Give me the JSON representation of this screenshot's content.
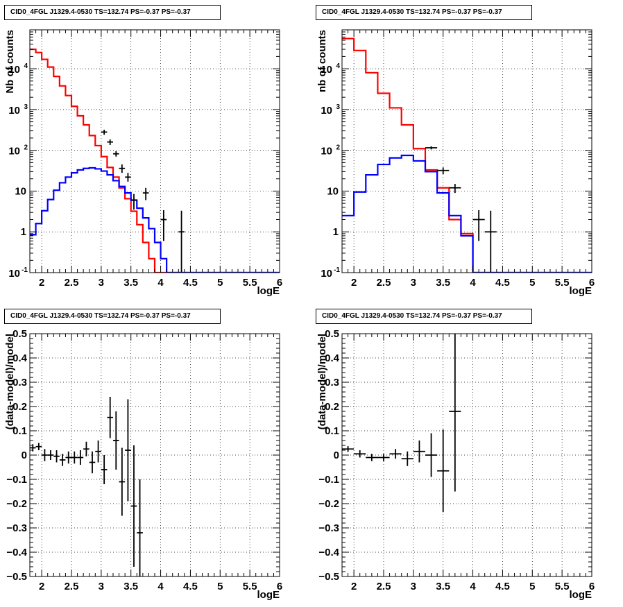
{
  "chart_data": [
    {
      "type": "step-histogram",
      "title": "CID0_4FGL J1329.4-0530 TS=132.74 PS=-0.37 PS=-0.37",
      "xlabel": "logE",
      "ylabel": "Nb of counts",
      "xlim": [
        1.8,
        6.0
      ],
      "ylim": [
        0.1,
        90000
      ],
      "yscale": "log",
      "grid": true,
      "x_ticks": [
        "2",
        "2.5",
        "3",
        "3.5",
        "4",
        "4.5",
        "5",
        "5.5",
        "6"
      ],
      "y_ticks": [
        "10^-1",
        "1",
        "10",
        "10^2",
        "10^3",
        "10^4"
      ],
      "bin_edges": [
        1.8,
        1.9,
        2.0,
        2.1,
        2.2,
        2.3,
        2.4,
        2.5,
        2.6,
        2.7,
        2.8,
        2.9,
        3.0,
        3.1,
        3.2,
        3.3,
        3.4,
        3.5,
        3.6,
        3.7,
        3.8,
        3.9,
        4.0,
        4.1,
        4.2,
        4.3,
        4.4,
        4.5,
        4.6,
        4.7,
        4.8,
        4.9,
        5.0,
        5.1,
        5.2,
        5.3,
        5.4,
        5.5,
        5.6,
        5.7,
        5.8,
        5.9,
        6.0
      ],
      "series": [
        {
          "name": "",
          "color": "#ff0000",
          "style": "step",
          "values": [
            30000,
            25000,
            17000,
            11000,
            6500,
            3800,
            2200,
            1200,
            700,
            420,
            230,
            130,
            70,
            38,
            22,
            12,
            6.5,
            3.2,
            1.5,
            0.55,
            0.22,
            0.1,
            0.1,
            0.1,
            0.1,
            0.1,
            0.1,
            0.1,
            0.1,
            0.1,
            0.1,
            0.1,
            0.1,
            0.1,
            0.1,
            0.1,
            0.1,
            0.1,
            0.1,
            0.1,
            0.1,
            0.1
          ]
        },
        {
          "name": "",
          "color": "#0000ff",
          "style": "step",
          "values": [
            0.85,
            1.6,
            3.3,
            6.2,
            10.5,
            16,
            22,
            28,
            33,
            36,
            37,
            35,
            31,
            25,
            18,
            13,
            9,
            6,
            3.8,
            2.2,
            1.2,
            0.55,
            0.22,
            0.1,
            0.1,
            0.1,
            0.1,
            0.1,
            0.1,
            0.1,
            0.1,
            0.1,
            0.1,
            0.1,
            0.1,
            0.1,
            0.1,
            0.1,
            0.1,
            0.1,
            0.1,
            0.1
          ]
        },
        {
          "name": "",
          "color": "#000000",
          "style": "errorbar",
          "points": [
            {
              "x": 3.05,
              "y": 280,
              "lo": 240,
              "hi": 320
            },
            {
              "x": 3.15,
              "y": 160,
              "lo": 135,
              "hi": 185
            },
            {
              "x": 3.25,
              "y": 82,
              "lo": 70,
              "hi": 95
            },
            {
              "x": 3.35,
              "y": 36,
              "lo": 28,
              "hi": 45
            },
            {
              "x": 3.45,
              "y": 22,
              "lo": 17,
              "hi": 28
            },
            {
              "x": 3.55,
              "y": 6,
              "lo": 3.5,
              "hi": 8.5
            },
            {
              "x": 3.75,
              "y": 9,
              "lo": 6,
              "hi": 12
            },
            {
              "x": 4.05,
              "y": 2,
              "lo": 0.6,
              "hi": 3.4
            },
            {
              "x": 4.35,
              "y": 1,
              "lo": 0.1,
              "hi": 3.3
            }
          ]
        }
      ]
    },
    {
      "type": "step-histogram",
      "title": "CID0_4FGL J1329.4-0530 TS=132.74 PS=-0.37 PS=-0.37",
      "xlabel": "logE",
      "ylabel": "nb of counts",
      "xlim": [
        1.8,
        6.0
      ],
      "ylim": [
        0.1,
        90000
      ],
      "yscale": "log",
      "grid": true,
      "x_ticks": [
        "2",
        "2.5",
        "3",
        "3.5",
        "4",
        "4.5",
        "5",
        "5.5",
        "6"
      ],
      "y_ticks": [
        "10^-1",
        "1",
        "10",
        "10^2",
        "10^3",
        "10^4"
      ],
      "bin_edges": [
        1.8,
        2.0,
        2.2,
        2.4,
        2.6,
        2.8,
        3.0,
        3.2,
        3.4,
        3.6,
        3.8,
        4.0,
        4.2,
        4.4,
        4.6,
        4.8,
        5.0,
        5.2,
        5.4,
        5.6,
        5.8,
        6.0
      ],
      "series": [
        {
          "name": "",
          "color": "#ff0000",
          "style": "step",
          "values": [
            55000,
            28000,
            8000,
            2500,
            1100,
            420,
            110,
            33,
            12,
            2,
            0.9,
            0.1,
            0.1,
            0.1,
            0.1,
            0.1,
            0.1,
            0.1,
            0.1,
            0.1,
            0.1
          ]
        },
        {
          "name": "",
          "color": "#0000ff",
          "style": "step",
          "values": [
            2.5,
            9.5,
            25,
            45,
            65,
            75,
            55,
            30,
            9,
            2.5,
            0.8,
            0.1,
            0.1,
            0.1,
            0.1,
            0.1,
            0.1,
            0.1,
            0.1,
            0.1,
            0.1
          ]
        },
        {
          "name": "",
          "color": "#000000",
          "style": "errorbar",
          "points": [
            {
              "x": 3.3,
              "y": 115,
              "lo": 105,
              "hi": 125
            },
            {
              "x": 3.5,
              "y": 32,
              "lo": 26,
              "hi": 38
            },
            {
              "x": 3.7,
              "y": 12,
              "lo": 9,
              "hi": 15
            },
            {
              "x": 4.1,
              "y": 2,
              "lo": 0.6,
              "hi": 3.4
            },
            {
              "x": 4.3,
              "y": 1,
              "lo": 0.1,
              "hi": 3.3
            }
          ]
        }
      ]
    },
    {
      "type": "errorbar",
      "title": "CID0_4FGL J1329.4-0530 TS=132.74 PS=-0.37 PS=-0.37",
      "xlabel": "logE",
      "ylabel": "(data-model)/model",
      "xlim": [
        1.8,
        6.0
      ],
      "ylim": [
        -0.5,
        0.5
      ],
      "grid": true,
      "x_ticks": [
        "2",
        "2.5",
        "3",
        "3.5",
        "4",
        "4.5",
        "5",
        "5.5",
        "6"
      ],
      "y_ticks": [
        "-0.5",
        "-0.4",
        "-0.3",
        "-0.2",
        "-0.1",
        "0",
        "0.1",
        "0.2",
        "0.3",
        "0.4",
        "0.5"
      ],
      "points": [
        {
          "x": 1.85,
          "y": 0.03,
          "xerr": 0.05,
          "lo": 0.015,
          "hi": 0.045
        },
        {
          "x": 1.95,
          "y": 0.035,
          "xerr": 0.05,
          "lo": 0.02,
          "hi": 0.05
        },
        {
          "x": 2.05,
          "y": 0.0,
          "xerr": 0.05,
          "lo": -0.025,
          "hi": 0.025
        },
        {
          "x": 2.15,
          "y": 0.0,
          "xerr": 0.05,
          "lo": -0.02,
          "hi": 0.02
        },
        {
          "x": 2.25,
          "y": -0.005,
          "xerr": 0.05,
          "lo": -0.03,
          "hi": 0.02
        },
        {
          "x": 2.35,
          "y": -0.02,
          "xerr": 0.05,
          "lo": -0.045,
          "hi": 0.005
        },
        {
          "x": 2.45,
          "y": -0.01,
          "xerr": 0.05,
          "lo": -0.035,
          "hi": 0.015
        },
        {
          "x": 2.55,
          "y": -0.01,
          "xerr": 0.05,
          "lo": -0.035,
          "hi": 0.015
        },
        {
          "x": 2.65,
          "y": -0.01,
          "xerr": 0.05,
          "lo": -0.04,
          "hi": 0.02
        },
        {
          "x": 2.75,
          "y": 0.025,
          "xerr": 0.05,
          "lo": -0.005,
          "hi": 0.055
        },
        {
          "x": 2.85,
          "y": -0.03,
          "xerr": 0.05,
          "lo": -0.075,
          "hi": 0.015
        },
        {
          "x": 2.95,
          "y": 0.015,
          "xerr": 0.05,
          "lo": -0.03,
          "hi": 0.06
        },
        {
          "x": 3.05,
          "y": -0.06,
          "xerr": 0.05,
          "lo": -0.12,
          "hi": 0.0
        },
        {
          "x": 3.15,
          "y": 0.155,
          "xerr": 0.05,
          "lo": 0.07,
          "hi": 0.24
        },
        {
          "x": 3.25,
          "y": 0.06,
          "xerr": 0.05,
          "lo": -0.06,
          "hi": 0.18
        },
        {
          "x": 3.35,
          "y": -0.11,
          "xerr": 0.05,
          "lo": -0.25,
          "hi": 0.03
        },
        {
          "x": 3.45,
          "y": 0.02,
          "xerr": 0.05,
          "lo": -0.19,
          "hi": 0.23
        },
        {
          "x": 3.55,
          "y": -0.21,
          "xerr": 0.05,
          "lo": -0.46,
          "hi": 0.04
        },
        {
          "x": 3.65,
          "y": -0.32,
          "xerr": 0.05,
          "lo": -0.5,
          "hi": -0.1
        }
      ]
    },
    {
      "type": "errorbar",
      "title": "CID0_4FGL J1329.4-0530 TS=132.74 PS=-0.37 PS=-0.37",
      "xlabel": "logE",
      "ylabel": "(data-model)/model",
      "xlim": [
        1.8,
        6.0
      ],
      "ylim": [
        -0.5,
        0.5
      ],
      "grid": true,
      "x_ticks": [
        "2",
        "2.5",
        "3",
        "3.5",
        "4",
        "4.5",
        "5",
        "5.5",
        "6"
      ],
      "y_ticks": [
        "-0.5",
        "-0.4",
        "-0.3",
        "-0.2",
        "-0.1",
        "0",
        "0.1",
        "0.2",
        "0.3",
        "0.4",
        "0.5"
      ],
      "points": [
        {
          "x": 1.9,
          "y": 0.025,
          "xerr": 0.1,
          "lo": 0.013,
          "hi": 0.037
        },
        {
          "x": 2.1,
          "y": 0.005,
          "xerr": 0.1,
          "lo": -0.01,
          "hi": 0.02
        },
        {
          "x": 2.3,
          "y": -0.01,
          "xerr": 0.1,
          "lo": -0.025,
          "hi": 0.005
        },
        {
          "x": 2.5,
          "y": -0.01,
          "xerr": 0.1,
          "lo": -0.025,
          "hi": 0.005
        },
        {
          "x": 2.7,
          "y": 0.005,
          "xerr": 0.1,
          "lo": -0.015,
          "hi": 0.025
        },
        {
          "x": 2.9,
          "y": -0.015,
          "xerr": 0.1,
          "lo": -0.045,
          "hi": 0.015
        },
        {
          "x": 3.1,
          "y": 0.015,
          "xerr": 0.1,
          "lo": -0.03,
          "hi": 0.06
        },
        {
          "x": 3.3,
          "y": 0.0,
          "xerr": 0.1,
          "lo": -0.09,
          "hi": 0.09
        },
        {
          "x": 3.5,
          "y": -0.065,
          "xerr": 0.1,
          "lo": -0.235,
          "hi": 0.105
        },
        {
          "x": 3.7,
          "y": 0.18,
          "xerr": 0.1,
          "lo": -0.15,
          "hi": 0.5
        }
      ]
    }
  ]
}
